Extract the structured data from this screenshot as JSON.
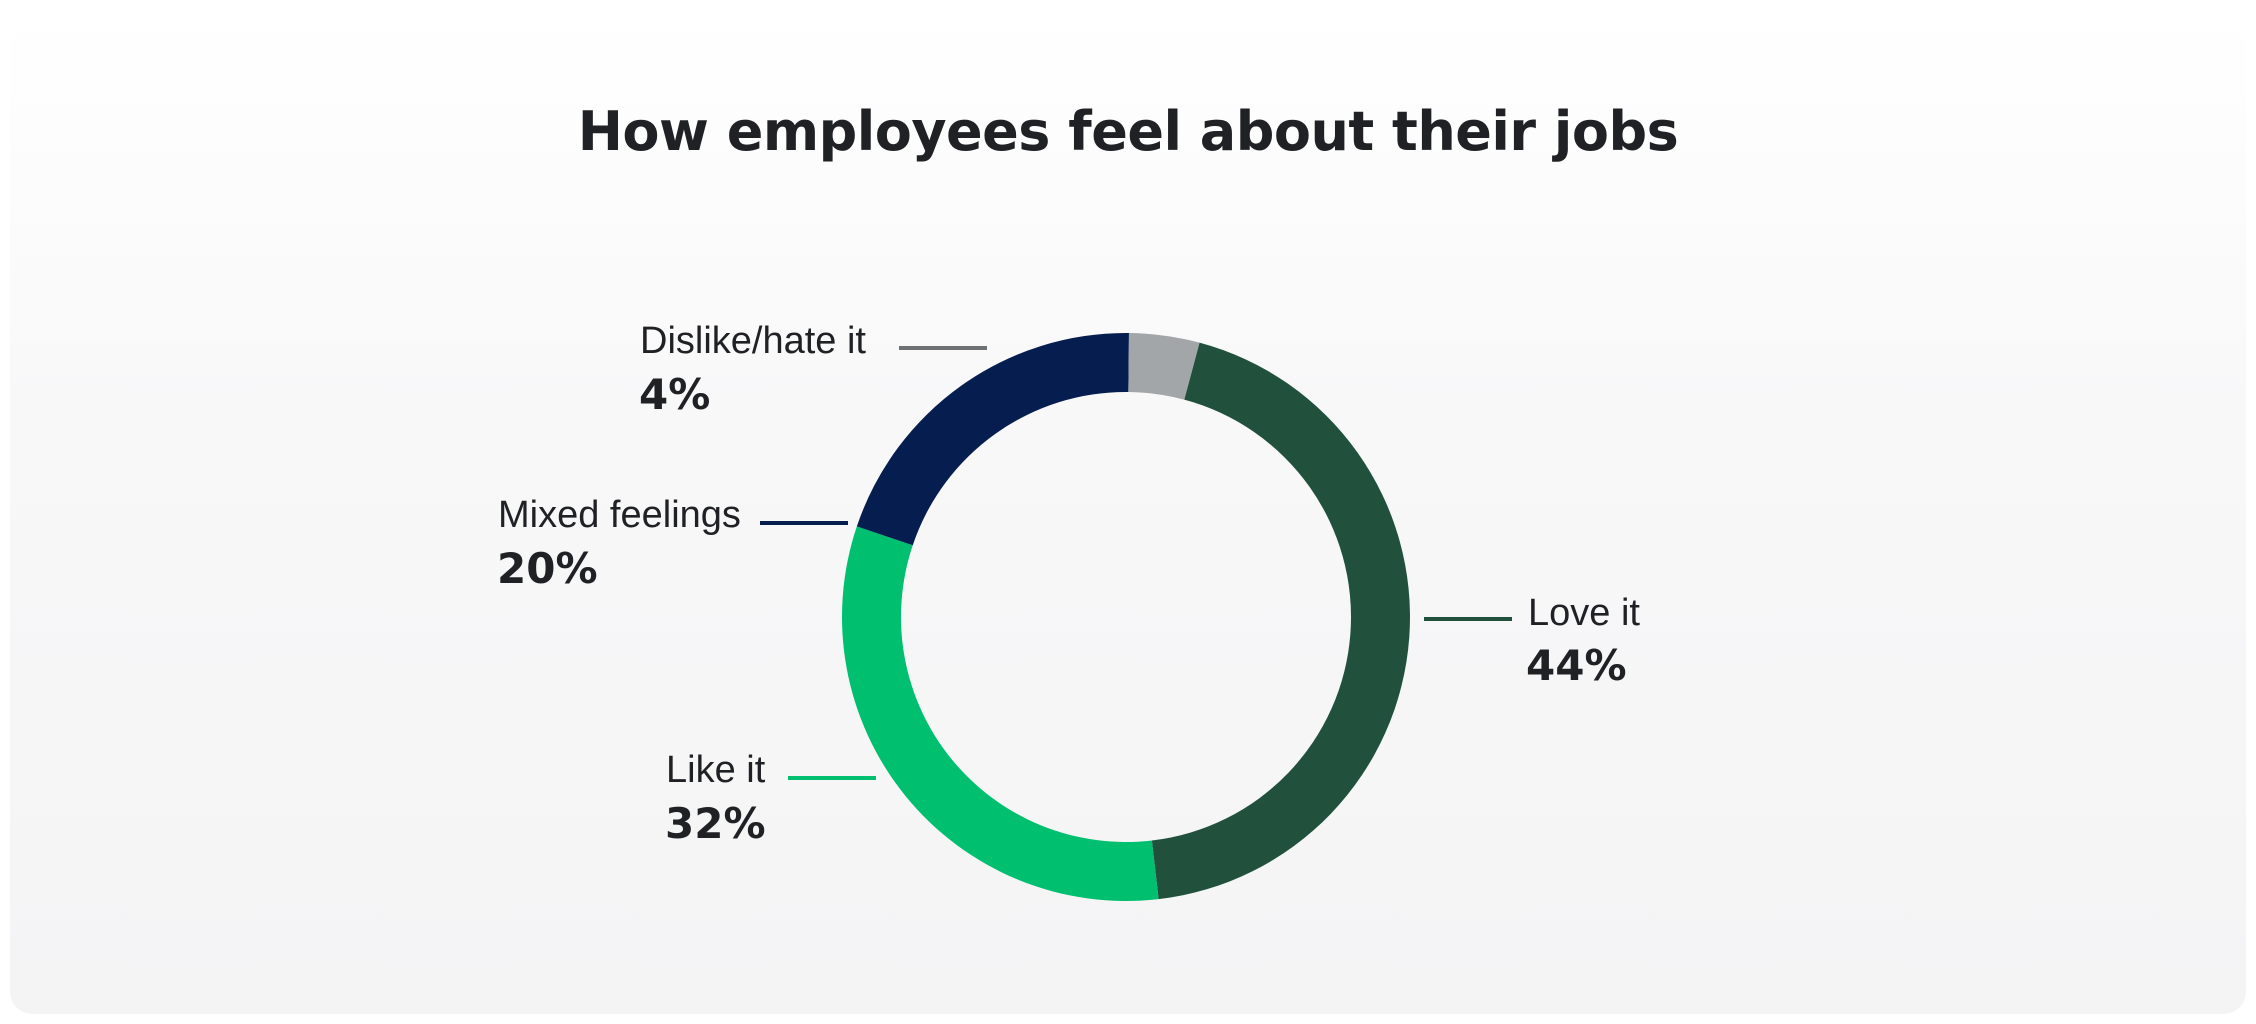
{
  "chart_data": {
    "type": "pie",
    "title": "How employees feel about their jobs",
    "slices": [
      {
        "label": "Love it",
        "value": 44,
        "value_label": "44%",
        "color": "#21513c"
      },
      {
        "label": "Like it",
        "value": 32,
        "value_label": "32%",
        "color": "#00bf6f"
      },
      {
        "label": "Mixed feelings",
        "value": 20,
        "value_label": "20%",
        "color": "#051d4f"
      },
      {
        "label": "Dislike/hate it",
        "value": 4,
        "value_label": "4%",
        "color": "#a2a6a8"
      }
    ],
    "legend": "none"
  }
}
